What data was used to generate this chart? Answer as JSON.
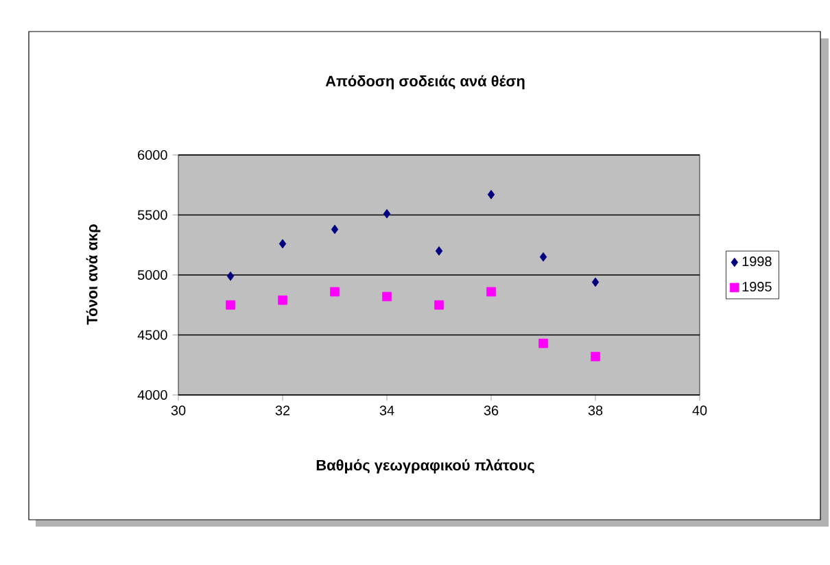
{
  "chart_data": {
    "type": "scatter",
    "title": "Απόδοση σοδειάς ανά θέση",
    "xlabel": "Βαθμός γεωγραφικού πλάτους",
    "ylabel": "Τόνοι ανά ακρ",
    "x": [
      31,
      32,
      33,
      34,
      35,
      36,
      37,
      38
    ],
    "series": [
      {
        "name": "1998",
        "color": "#000080",
        "marker": "diamond",
        "values": [
          4990,
          5260,
          5380,
          5510,
          5200,
          5670,
          5150,
          4940
        ]
      },
      {
        "name": "1995",
        "color": "#ff00ff",
        "marker": "square",
        "values": [
          4750,
          4790,
          4860,
          4820,
          4750,
          4860,
          4430,
          4320
        ]
      }
    ],
    "xlim": [
      30,
      40
    ],
    "ylim": [
      4000,
      6000
    ],
    "xticks": [
      30,
      32,
      34,
      36,
      38,
      40
    ],
    "yticks": [
      4000,
      4500,
      5000,
      5500,
      6000
    ],
    "grid": "y",
    "legend": "right"
  }
}
